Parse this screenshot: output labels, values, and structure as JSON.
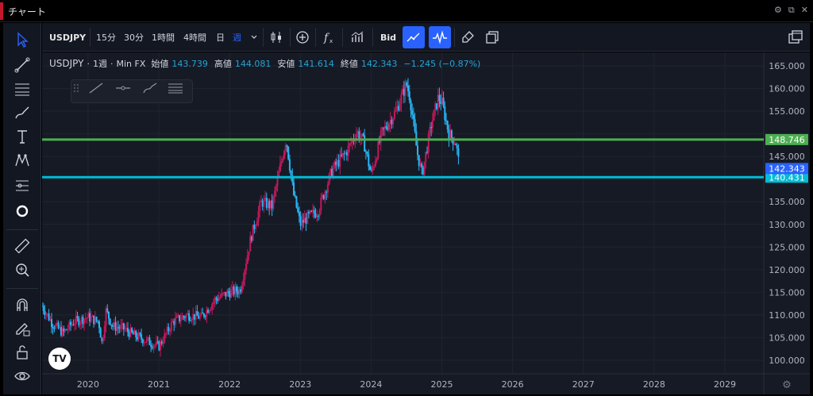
{
  "window": {
    "title": "チャート"
  },
  "toolbar": {
    "symbol": "USDJPY",
    "intervals": [
      "15分",
      "30分",
      "1時間",
      "4時間",
      "日",
      "週"
    ],
    "active_interval": "週",
    "price_type": "Bid"
  },
  "legend": {
    "symbol": "USDJPY",
    "interval": "1週",
    "source": "Min FX",
    "open_label": "始値",
    "open": "143.739",
    "high_label": "高値",
    "high": "144.081",
    "low_label": "安値",
    "low": "141.614",
    "close_label": "終値",
    "close": "142.343",
    "change": "−1.245 (−0.87%)"
  },
  "logo_text": "TV",
  "colors": {
    "background": "#161a25",
    "up": "#c2185b",
    "down": "#29b6f6",
    "green_line": "#4caf50",
    "cyan_line": "#00bcd4",
    "accent": "#2962ff"
  },
  "chart_data": {
    "type": "candlestick",
    "y_ticks": [
      "165.000",
      "160.000",
      "155.000",
      "150.000",
      "145.000",
      "140.000",
      "135.000",
      "130.000",
      "125.000",
      "120.000",
      "115.000",
      "110.000",
      "105.000",
      "100.000"
    ],
    "y_range": [
      97,
      168
    ],
    "x_ticks": [
      "2020",
      "2021",
      "2022",
      "2023",
      "2024",
      "2025",
      "2026",
      "2027",
      "2028",
      "2029"
    ],
    "x_range_years": [
      2019.35,
      2029.55
    ],
    "horizontal_lines": [
      {
        "price": 148.746,
        "label": "148.746",
        "color": "#4caf50"
      },
      {
        "price": 140.431,
        "label": "140.431",
        "color": "#00bcd4"
      }
    ],
    "last_price": {
      "price": 142.343,
      "label": "142.343"
    },
    "path": [
      [
        2019.35,
        112.0
      ],
      [
        2019.5,
        108.0
      ],
      [
        2019.65,
        106.0
      ],
      [
        2019.8,
        108.5
      ],
      [
        2020.0,
        109.5
      ],
      [
        2020.15,
        108.5
      ],
      [
        2020.2,
        103.5
      ],
      [
        2020.25,
        111.0
      ],
      [
        2020.35,
        107.5
      ],
      [
        2020.5,
        107.0
      ],
      [
        2020.65,
        105.5
      ],
      [
        2020.8,
        104.5
      ],
      [
        2021.0,
        103.0
      ],
      [
        2021.2,
        108.5
      ],
      [
        2021.4,
        110.0
      ],
      [
        2021.6,
        109.5
      ],
      [
        2021.8,
        113.5
      ],
      [
        2022.0,
        115.0
      ],
      [
        2022.15,
        115.5
      ],
      [
        2022.3,
        127.0
      ],
      [
        2022.45,
        135.0
      ],
      [
        2022.6,
        134.0
      ],
      [
        2022.8,
        149.0
      ],
      [
        2022.9,
        137.0
      ],
      [
        2023.0,
        130.0
      ],
      [
        2023.1,
        131.5
      ],
      [
        2023.25,
        133.0
      ],
      [
        2023.45,
        142.0
      ],
      [
        2023.65,
        146.0
      ],
      [
        2023.8,
        150.5
      ],
      [
        2023.9,
        148.0
      ],
      [
        2024.0,
        141.0
      ],
      [
        2024.15,
        150.0
      ],
      [
        2024.35,
        155.0
      ],
      [
        2024.5,
        161.0
      ],
      [
        2024.55,
        158.0
      ],
      [
        2024.65,
        146.0
      ],
      [
        2024.72,
        141.0
      ],
      [
        2024.85,
        152.0
      ],
      [
        2024.95,
        158.0
      ],
      [
        2025.0,
        157.0
      ],
      [
        2025.1,
        150.0
      ],
      [
        2025.2,
        148.0
      ],
      [
        2025.25,
        142.343
      ]
    ]
  }
}
